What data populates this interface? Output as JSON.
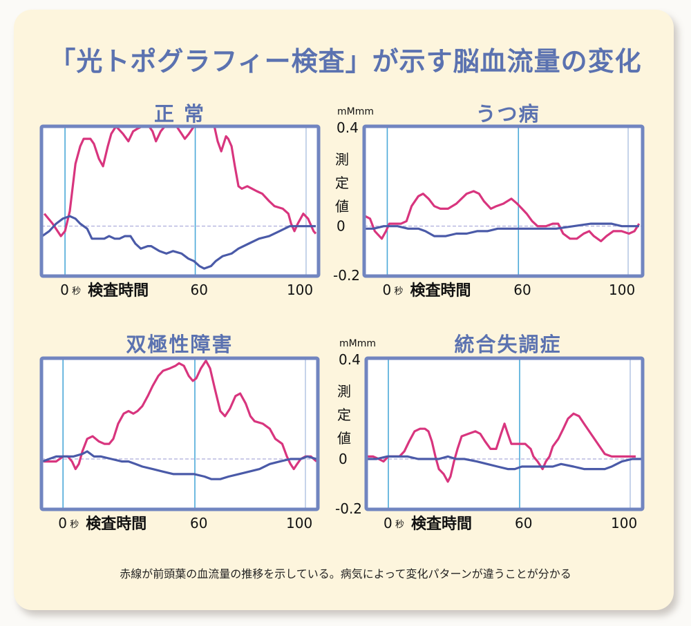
{
  "title": "「光トポグラフィー検査」が示す脳血流量の変化",
  "footnote": "赤線が前頭葉の血流量の推移を示している。病気によって変化パターンが違うことが分かる",
  "colors": {
    "title": "#5b72b0",
    "red_line": "#d8357e",
    "blue_line": "#4a5aa8",
    "frame": "#7185c0",
    "marker_line": "#4aa8d8",
    "end_marker_line": "#b7c8e4",
    "zero_line": "#b8b8e0",
    "background": "#fdf5dd"
  },
  "axis": {
    "unit": "mMmm",
    "ylabel": "測定値",
    "ylabel_chars": [
      "測",
      "定",
      "値"
    ],
    "yticks": [
      "0.4",
      "0",
      "-0.2"
    ],
    "xlabel": "検査時間",
    "x_unit": "秒"
  },
  "chart_data": [
    {
      "type": "line",
      "title": "正 常",
      "xlabel": "検査時間",
      "ylabel": "測定値 (mMmm)",
      "xticks": [
        0,
        60,
        100
      ],
      "xtick_labels": [
        "0",
        "60",
        "100"
      ],
      "ylim": [
        -0.2,
        0.4
      ],
      "yticks": [
        0.4,
        0,
        -0.2
      ],
      "show_y_axis_labels": false,
      "grid": false,
      "series": [
        {
          "name": "前頭葉の血流量 (赤線)",
          "color": "red",
          "x": [
            -9.5,
            -5.7,
            -1.9,
            0,
            2.2,
            4.8,
            7,
            8.6,
            11.7,
            13.3,
            15.6,
            17.5,
            19.7,
            21.3,
            23.5,
            26.7,
            29.2,
            31.4,
            33.3,
            35.6,
            38.7,
            40.3,
            41.9,
            44.1,
            46,
            51.4,
            53.7,
            55.2,
            57.1,
            59.4,
            66.9,
            68.1,
            69.4,
            71.1,
            71.9,
            73.1,
            74.3,
            75.6,
            76.8,
            78.8,
            80.5,
            82.2,
            84.2,
            86.7,
            88.6,
            91.6,
            93.6,
            94.6,
            95.8,
            97,
            99,
            100.7,
            102.7,
            103.5
          ],
          "y": [
            0.05,
            0.01,
            -0.04,
            -0.02,
            0.06,
            0.25,
            0.32,
            0.35,
            0.35,
            0.33,
            0.27,
            0.24,
            0.32,
            0.37,
            0.4,
            0.37,
            0.34,
            0.38,
            0.39,
            0.4,
            0.4,
            0.38,
            0.34,
            0.38,
            0.4,
            0.4,
            0.37,
            0.35,
            0.37,
            0.4,
            0.4,
            0.34,
            0.3,
            0.36,
            0.35,
            0.32,
            0.24,
            0.16,
            0.15,
            0.16,
            0.15,
            0.14,
            0.13,
            0.1,
            0.08,
            0.07,
            0.05,
            0.01,
            -0.02,
            0.01,
            0.05,
            0.03,
            -0.02,
            -0.03
          ]
        },
        {
          "name": "青線",
          "color": "blue",
          "x": [
            -10.5,
            -7.3,
            -4.1,
            -1,
            2.2,
            4.8,
            7,
            10.2,
            12.4,
            14.9,
            18.1,
            20.3,
            22.9,
            25.1,
            27.6,
            30.2,
            32.4,
            34.9,
            38.1,
            39.7,
            43.5,
            46.7,
            49.8,
            53.7,
            56.8,
            59.4,
            61.5,
            63.2,
            65.7,
            67.4,
            69.9,
            73.1,
            75.6,
            79.3,
            83,
            86.7,
            90.4,
            94.1,
            97.8,
            103.5
          ],
          "y": [
            -0.04,
            -0.02,
            0.01,
            0.03,
            0.04,
            0.03,
            0.01,
            -0.01,
            -0.05,
            -0.05,
            -0.05,
            -0.04,
            -0.05,
            -0.05,
            -0.04,
            -0.04,
            -0.07,
            -0.09,
            -0.08,
            -0.08,
            -0.1,
            -0.11,
            -0.1,
            -0.11,
            -0.13,
            -0.14,
            -0.16,
            -0.17,
            -0.16,
            -0.14,
            -0.12,
            -0.11,
            -0.09,
            -0.07,
            -0.05,
            -0.04,
            -0.02,
            0.0,
            0.0,
            0.0
          ]
        }
      ]
    },
    {
      "type": "line",
      "title": "うつ病",
      "xlabel": "検査時間",
      "ylabel": "測定値 (mMmm)",
      "xticks": [
        0,
        60,
        100
      ],
      "xtick_labels": [
        "0",
        "60",
        "100"
      ],
      "ylim": [
        -0.2,
        0.4
      ],
      "yticks": [
        0.4,
        0,
        -0.2
      ],
      "show_y_axis_labels": true,
      "grid": false,
      "series": [
        {
          "name": "前頭葉の血流量 (赤線)",
          "color": "red",
          "x": [
            -10.1,
            -7.9,
            -5.7,
            -2.5,
            -0.6,
            0.9,
            3.2,
            6.3,
            8.8,
            11.1,
            14.2,
            16.4,
            18.9,
            21.5,
            24.3,
            27.8,
            31.6,
            36.3,
            39.5,
            42,
            44.2,
            47.4,
            49.9,
            53.1,
            56.8,
            59.4,
            61.3,
            63,
            65,
            67,
            70,
            72.5,
            74.5,
            76.3,
            78.8,
            81.3,
            83.8,
            85.8,
            87.5,
            90.1,
            92.1,
            94.6,
            97.6,
            100.3,
            102.3,
            104
          ],
          "y": [
            0.04,
            0.03,
            -0.02,
            -0.05,
            -0.02,
            0.01,
            0.01,
            0.01,
            0.02,
            0.08,
            0.12,
            0.13,
            0.11,
            0.08,
            0.07,
            0.07,
            0.09,
            0.13,
            0.14,
            0.13,
            0.1,
            0.07,
            0.08,
            0.09,
            0.11,
            0.09,
            0.07,
            0.05,
            0.02,
            0.0,
            0.0,
            0.01,
            0.01,
            -0.03,
            -0.05,
            -0.05,
            -0.03,
            -0.02,
            -0.04,
            -0.06,
            -0.04,
            -0.02,
            -0.02,
            -0.03,
            -0.02,
            0.01
          ]
        },
        {
          "name": "青線",
          "color": "blue",
          "x": [
            -10.1,
            -6.3,
            -1.6,
            1.6,
            4.7,
            9.5,
            14.2,
            17.4,
            21.5,
            26.8,
            31.6,
            36.3,
            41.1,
            45.8,
            50.5,
            55.3,
            60,
            62.5,
            66.3,
            70,
            73.8,
            80.1,
            86.4,
            90.1,
            93.9,
            97.7,
            104
          ],
          "y": [
            -0.01,
            -0.01,
            0,
            0,
            0,
            -0.01,
            -0.01,
            -0.02,
            -0.04,
            -0.04,
            -0.03,
            -0.03,
            -0.02,
            -0.02,
            -0.01,
            -0.01,
            -0.01,
            -0.01,
            -0.01,
            -0.01,
            -0.01,
            0,
            0.01,
            0.01,
            0.01,
            0,
            0
          ]
        }
      ]
    },
    {
      "type": "line",
      "title": "双極性障害",
      "xlabel": "検査時間",
      "ylabel": "測定値 (mMmm)",
      "xticks": [
        0,
        60,
        100
      ],
      "xtick_labels": [
        "0",
        "60",
        "100"
      ],
      "ylim": [
        -0.2,
        0.4
      ],
      "yticks": [
        0.4,
        0,
        -0.2
      ],
      "show_y_axis_labels": false,
      "grid": false,
      "series": [
        {
          "name": "前頭葉の血流量 (赤線)",
          "color": "red",
          "x": [
            -8.8,
            -6.3,
            -3.1,
            0,
            2.2,
            4.1,
            5.7,
            7.2,
            8.8,
            11,
            13.5,
            16.3,
            18.8,
            21,
            22.9,
            25.1,
            27.6,
            29.8,
            32,
            33.9,
            36.1,
            38.6,
            40.8,
            43.4,
            45.5,
            48.7,
            51.2,
            52.8,
            55,
            57.2,
            59.1,
            60.5,
            62.2,
            64,
            65.5,
            67.2,
            69.2,
            70.9,
            72.7,
            74.7,
            76.4,
            78.4,
            80.1,
            81.6,
            84.6,
            87.1,
            89.1,
            91.6,
            93.3,
            94.6,
            95.8,
            97,
            98.3,
            100,
            102,
            104
          ],
          "y": [
            -0.01,
            -0.01,
            -0.01,
            0.01,
            0.01,
            -0.01,
            -0.04,
            -0.02,
            0.03,
            0.08,
            0.09,
            0.07,
            0.06,
            0.06,
            0.08,
            0.14,
            0.18,
            0.19,
            0.18,
            0.19,
            0.21,
            0.25,
            0.29,
            0.33,
            0.35,
            0.36,
            0.37,
            0.38,
            0.37,
            0.33,
            0.31,
            0.32,
            0.36,
            0.39,
            0.36,
            0.28,
            0.19,
            0.17,
            0.2,
            0.25,
            0.26,
            0.22,
            0.17,
            0.15,
            0.14,
            0.12,
            0.08,
            0.06,
            0.01,
            -0.02,
            -0.04,
            -0.02,
            0,
            0.01,
            0.01,
            -0.01
          ]
        },
        {
          "name": "青線",
          "color": "blue",
          "x": [
            -9.4,
            -6.3,
            -3.1,
            0,
            4.7,
            8.8,
            11,
            14.1,
            17.3,
            22,
            26.7,
            29.8,
            33,
            36.1,
            40.8,
            45.5,
            50.3,
            55,
            59.7,
            63.5,
            66,
            69.2,
            72.2,
            75.9,
            79.6,
            83.4,
            87.1,
            90.8,
            94.6,
            98.3,
            100.7,
            104
          ],
          "y": [
            -0.01,
            0,
            0.01,
            0.01,
            0.01,
            0.02,
            0.03,
            0.01,
            0.01,
            0,
            -0.01,
            -0.01,
            -0.02,
            -0.03,
            -0.04,
            -0.05,
            -0.06,
            -0.06,
            -0.06,
            -0.07,
            -0.08,
            -0.08,
            -0.07,
            -0.06,
            -0.05,
            -0.04,
            -0.02,
            -0.01,
            0,
            0,
            0.01,
            0
          ]
        }
      ]
    },
    {
      "type": "line",
      "title": "統合失調症",
      "xlabel": "検査時間",
      "ylabel": "測定値 (mMmm)",
      "xticks": [
        0,
        60,
        100
      ],
      "xtick_labels": [
        "0",
        "60",
        "100"
      ],
      "ylim": [
        -0.2,
        0.4
      ],
      "yticks": [
        0.4,
        0,
        -0.2
      ],
      "show_y_axis_labels": true,
      "grid": false,
      "series": [
        {
          "name": "前頭葉の血流量 (赤線)",
          "color": "red",
          "x": [
            -9.5,
            -6.9,
            -4.4,
            -2.2,
            0,
            2.5,
            5.1,
            7.3,
            9.5,
            12,
            14.5,
            16.7,
            18.3,
            19.9,
            21.5,
            23.1,
            25.3,
            27.2,
            28.4,
            30,
            31.6,
            33.5,
            36.6,
            39.8,
            42,
            44.2,
            46.7,
            49.3,
            51.5,
            53.1,
            54.6,
            56.2,
            57.8,
            60,
            62,
            64,
            65,
            66.5,
            68.3,
            69.5,
            70.8,
            72,
            74,
            75.8,
            77.5,
            79.5,
            81.5,
            83.3,
            85.8,
            88.3,
            90.8,
            93.3,
            95.8,
            98.3,
            100,
            102
          ],
          "y": [
            0.01,
            0.01,
            0,
            -0.01,
            0.01,
            0.01,
            0.01,
            0.03,
            0.07,
            0.11,
            0.12,
            0.12,
            0.11,
            0.07,
            0.01,
            -0.04,
            -0.06,
            -0.09,
            -0.07,
            -0.01,
            0.04,
            0.09,
            0.1,
            0.11,
            0.1,
            0.07,
            0.04,
            0.04,
            0.1,
            0.14,
            0.1,
            0.06,
            0.06,
            0.06,
            0.06,
            0.04,
            0.01,
            -0.01,
            -0.04,
            -0.01,
            0.01,
            0.05,
            0.08,
            0.12,
            0.16,
            0.18,
            0.17,
            0.14,
            0.1,
            0.06,
            0.02,
            0.01,
            0.01,
            0.01,
            0.01,
            0.01
          ]
        },
        {
          "name": "青線",
          "color": "blue",
          "x": [
            -9.5,
            -5.4,
            -0.6,
            4.1,
            8.8,
            13.6,
            18.3,
            23.1,
            27.2,
            30.9,
            34.7,
            40.4,
            45.2,
            49.9,
            54.6,
            57.8,
            60.8,
            64.5,
            69.5,
            72,
            75,
            79.5,
            83.3,
            87,
            90.8,
            93.3,
            97,
            100.8,
            104
          ],
          "y": [
            0,
            0,
            0.01,
            0.01,
            0.01,
            0,
            0,
            0,
            0.01,
            0,
            0,
            -0.01,
            -0.02,
            -0.03,
            -0.04,
            -0.04,
            -0.03,
            -0.03,
            -0.03,
            -0.03,
            -0.02,
            -0.03,
            -0.04,
            -0.04,
            -0.04,
            -0.03,
            -0.01,
            0,
            0
          ]
        }
      ]
    }
  ]
}
